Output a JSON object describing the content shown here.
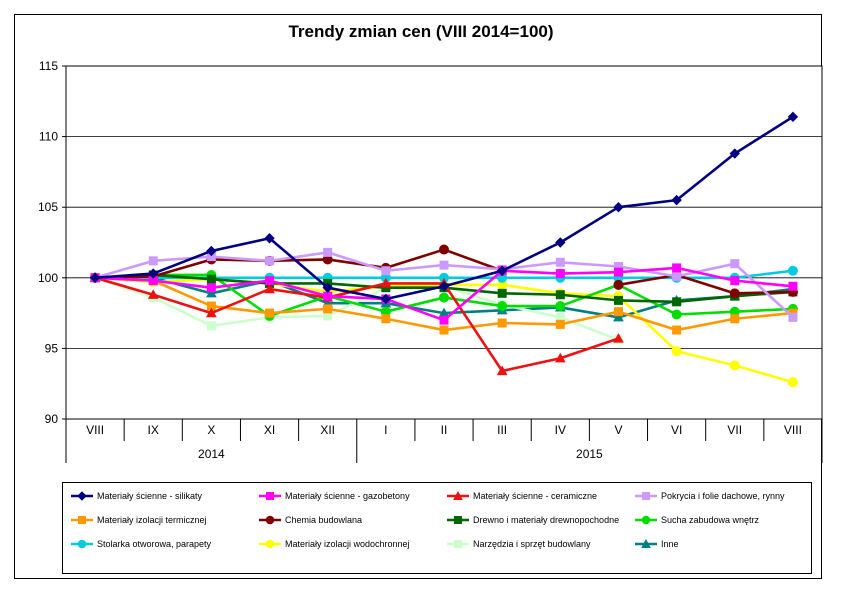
{
  "chart_data": {
    "type": "line",
    "title": "Trendy zmian cen (VIII 2014=100)",
    "xlabel": "",
    "ylabel": "",
    "ylim": [
      90,
      115
    ],
    "yticks": [
      "90",
      "95",
      "100",
      "105",
      "110",
      "115"
    ],
    "categories": [
      "VIII",
      "IX",
      "X",
      "XI",
      "XII",
      "I",
      "II",
      "III",
      "IV",
      "V",
      "VI",
      "VII",
      "VIII"
    ],
    "years": [
      {
        "label": "2014",
        "start": 0,
        "end": 4
      },
      {
        "label": "2015",
        "start": 5,
        "end": 12
      }
    ],
    "grid": "horizontal",
    "legend_position": "bottom",
    "series": [
      {
        "name": "Materiały ścienne - silikaty",
        "color": "#000080",
        "marker": "diamond",
        "values": [
          100,
          100.3,
          101.9,
          102.8,
          99.3,
          98.5,
          99.4,
          100.5,
          102.5,
          105.0,
          105.5,
          108.8,
          111.4
        ]
      },
      {
        "name": "Materiały ścienne - gazobetony",
        "color": "#ff00ff",
        "marker": "square",
        "values": [
          100,
          99.8,
          99.3,
          99.8,
          98.7,
          98.5,
          97.0,
          100.5,
          100.3,
          100.4,
          100.7,
          99.8,
          99.4
        ]
      },
      {
        "name": "Materiały ścienne - ceramiczne",
        "color": "#ee1111",
        "marker": "triangle",
        "values": [
          100,
          98.8,
          97.5,
          99.2,
          98.6,
          99.6,
          99.6,
          93.4,
          94.3,
          95.7,
          null,
          null,
          null
        ]
      },
      {
        "name": "Pokrycia i folie dachowe, rynny",
        "color": "#cc99ff",
        "marker": "square",
        "values": [
          100,
          101.2,
          101.5,
          101.2,
          101.8,
          100.5,
          100.9,
          100.6,
          101.1,
          100.8,
          100.1,
          101.0,
          97.2
        ]
      },
      {
        "name": "Materiały izolacji termicznej",
        "color": "#ff9900",
        "marker": "square",
        "values": [
          100,
          99.8,
          98.0,
          97.5,
          97.8,
          97.1,
          96.3,
          96.8,
          96.7,
          97.6,
          96.3,
          97.1,
          97.5
        ]
      },
      {
        "name": "Chemia budowlana",
        "color": "#800000",
        "marker": "circle",
        "values": [
          100,
          100.1,
          101.3,
          101.2,
          101.3,
          100.7,
          102.0,
          100.5,
          null,
          99.5,
          100.2,
          98.9,
          99.0
        ]
      },
      {
        "name": "Drewno i materiały drewnopochodne",
        "color": "#006600",
        "marker": "square",
        "values": [
          100,
          100.2,
          99.9,
          99.6,
          99.6,
          99.3,
          99.3,
          98.9,
          98.8,
          98.4,
          98.3,
          98.7,
          99.0
        ]
      },
      {
        "name": "Sucha zabudowa wnętrz",
        "color": "#00dd00",
        "marker": "circle",
        "values": [
          100,
          100.2,
          100.2,
          97.3,
          98.7,
          97.6,
          98.6,
          98.0,
          98.0,
          99.5,
          97.4,
          97.6,
          97.8
        ]
      },
      {
        "name": "Stolarka otworowa, parapety",
        "color": "#00ccdd",
        "marker": "circle",
        "values": [
          100,
          100.0,
          100.0,
          100.0,
          100.0,
          100.0,
          100.0,
          100.0,
          100.0,
          100.0,
          100.0,
          100.0,
          100.5
        ]
      },
      {
        "name": "Materiały izolacji wodochronnej",
        "color": "#ffff00",
        "marker": "circle",
        "values": [
          100,
          99.7,
          99.9,
          99.6,
          99.0,
          99.4,
          99.5,
          99.5,
          98.9,
          98.7,
          94.8,
          93.8,
          92.6
        ]
      },
      {
        "name": "Narzędzia i sprzęt budowlany",
        "color": "#ccffcc",
        "marker": "square",
        "values": [
          100,
          98.6,
          96.6,
          97.2,
          97.3,
          99.3,
          99.4,
          98.1,
          97.2,
          95.6,
          null,
          null,
          null
        ]
      },
      {
        "name": "Inne",
        "color": "#008080",
        "marker": "triangle",
        "values": [
          100,
          100.0,
          98.9,
          99.8,
          98.2,
          98.2,
          97.5,
          97.7,
          97.9,
          97.2,
          98.4,
          98.7,
          99.2
        ]
      }
    ]
  }
}
